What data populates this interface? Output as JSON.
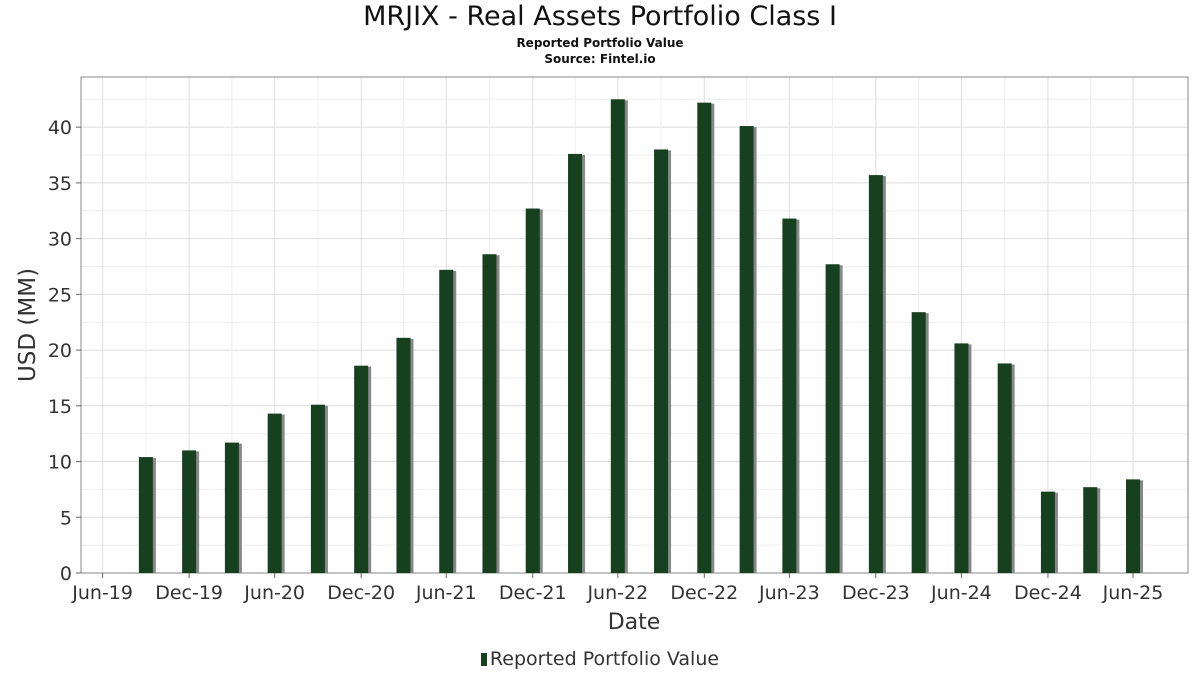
{
  "chart_data": {
    "type": "bar",
    "title": "MRJIX - Real Assets Portfolio Class I",
    "subtitle": "Reported Portfolio Value",
    "source": "Source: Fintel.io",
    "xlabel": "Date",
    "ylabel": "USD (MM)",
    "ylim": [
      0,
      44.5
    ],
    "yticks": [
      0,
      5,
      10,
      15,
      20,
      25,
      30,
      35,
      40
    ],
    "xlim": [
      "2019-05-15",
      "2025-10-25"
    ],
    "xticks": [
      {
        "date": "2019-06-30",
        "label": "Jun-19"
      },
      {
        "date": "2019-12-31",
        "label": "Dec-19"
      },
      {
        "date": "2020-06-30",
        "label": "Jun-20"
      },
      {
        "date": "2020-12-31",
        "label": "Dec-20"
      },
      {
        "date": "2021-06-30",
        "label": "Jun-21"
      },
      {
        "date": "2021-12-31",
        "label": "Dec-21"
      },
      {
        "date": "2022-06-30",
        "label": "Jun-22"
      },
      {
        "date": "2022-12-31",
        "label": "Dec-22"
      },
      {
        "date": "2023-06-30",
        "label": "Jun-23"
      },
      {
        "date": "2023-12-31",
        "label": "Dec-23"
      },
      {
        "date": "2024-06-30",
        "label": "Jun-24"
      },
      {
        "date": "2024-12-31",
        "label": "Dec-24"
      },
      {
        "date": "2025-06-30",
        "label": "Jun-25"
      }
    ],
    "grid": true,
    "legend_position": "bottom",
    "series": [
      {
        "name": "Reported Portfolio Value",
        "color": "#17401f",
        "points": [
          {
            "date": "2019-09-30",
            "value": 10.4
          },
          {
            "date": "2019-12-31",
            "value": 11.0
          },
          {
            "date": "2020-03-31",
            "value": 11.7
          },
          {
            "date": "2020-06-30",
            "value": 14.3
          },
          {
            "date": "2020-09-30",
            "value": 15.1
          },
          {
            "date": "2020-12-31",
            "value": 18.6
          },
          {
            "date": "2021-03-31",
            "value": 21.1
          },
          {
            "date": "2021-06-30",
            "value": 27.2
          },
          {
            "date": "2021-09-30",
            "value": 28.6
          },
          {
            "date": "2021-12-31",
            "value": 32.7
          },
          {
            "date": "2022-03-31",
            "value": 37.6
          },
          {
            "date": "2022-06-30",
            "value": 42.5
          },
          {
            "date": "2022-09-30",
            "value": 38.0
          },
          {
            "date": "2022-12-31",
            "value": 42.2
          },
          {
            "date": "2023-03-31",
            "value": 40.1
          },
          {
            "date": "2023-06-30",
            "value": 31.8
          },
          {
            "date": "2023-09-30",
            "value": 27.7
          },
          {
            "date": "2023-12-31",
            "value": 35.7
          },
          {
            "date": "2024-03-31",
            "value": 23.4
          },
          {
            "date": "2024-06-30",
            "value": 20.6
          },
          {
            "date": "2024-09-30",
            "value": 18.8
          },
          {
            "date": "2024-12-31",
            "value": 7.3
          },
          {
            "date": "2025-03-31",
            "value": 7.7
          },
          {
            "date": "2025-06-30",
            "value": 8.4
          }
        ]
      }
    ]
  },
  "colors": {
    "bar": "#17401f",
    "bar_shadow": "#888888",
    "grid": "#dedede",
    "frame": "#888888"
  }
}
